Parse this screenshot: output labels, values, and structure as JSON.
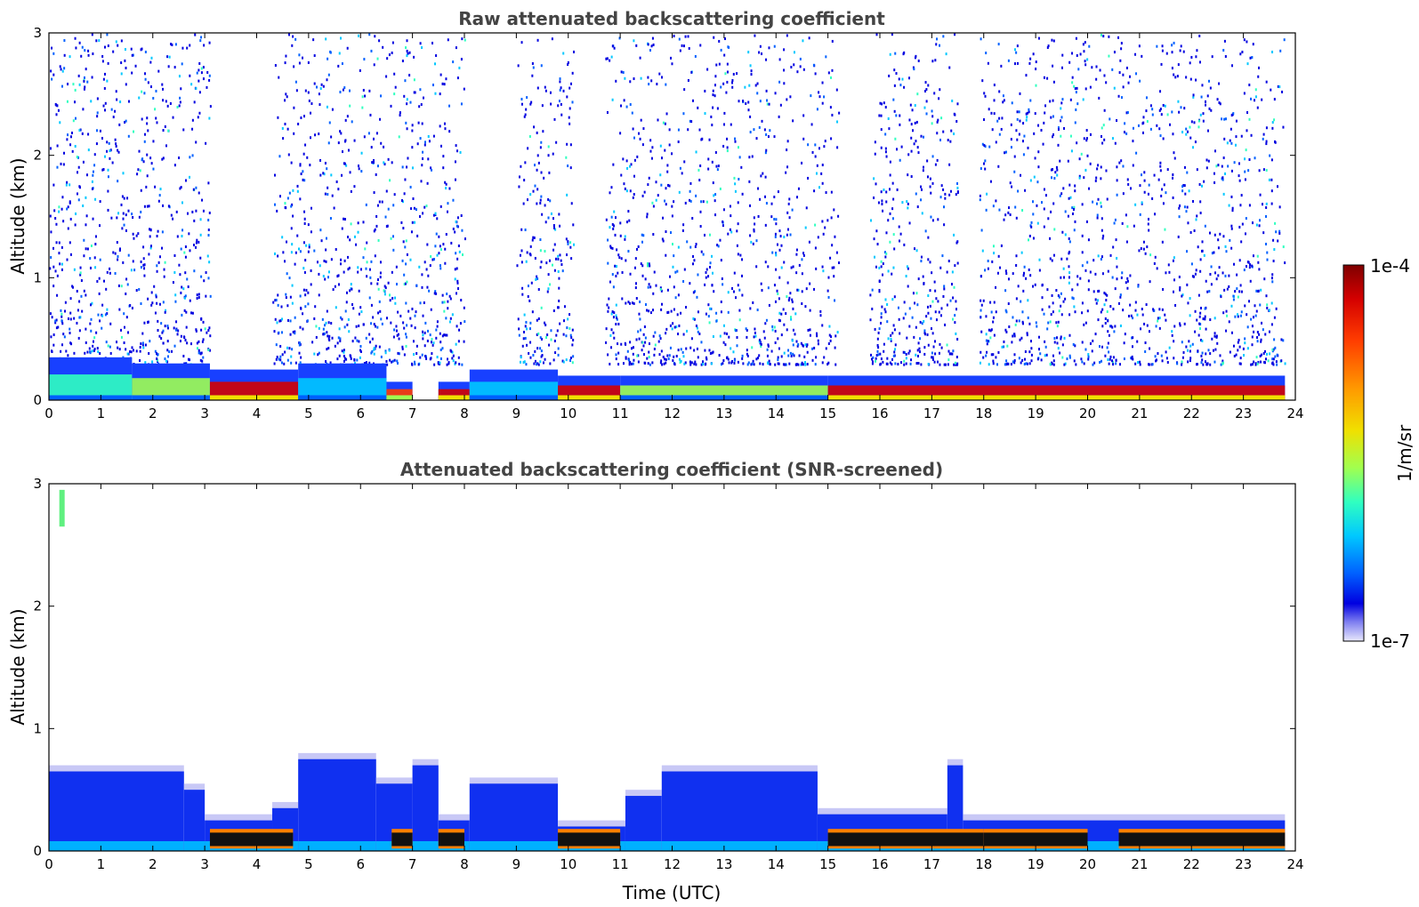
{
  "chart_data": [
    {
      "type": "heatmap",
      "title": "Raw attenuated backscattering coefficient",
      "xlabel": "",
      "ylabel": "Altitude (km)",
      "xlim": [
        0,
        24
      ],
      "ylim": [
        0,
        3
      ],
      "xticks": [
        "0",
        "1",
        "2",
        "3",
        "4",
        "5",
        "6",
        "7",
        "8",
        "9",
        "10",
        "11",
        "12",
        "13",
        "14",
        "15",
        "16",
        "17",
        "18",
        "19",
        "20",
        "21",
        "22",
        "23",
        "24"
      ],
      "yticks": [
        "0",
        "1",
        "2",
        "3"
      ],
      "noise_top_km": 3.0,
      "no_data_gaps": [
        [
          3.1,
          4.3
        ],
        [
          8.0,
          9.0
        ],
        [
          10.1,
          10.7
        ],
        [
          15.2,
          15.8
        ],
        [
          17.5,
          17.9
        ]
      ],
      "boundary_layer": [
        {
          "t": [
            0.0,
            1.6
          ],
          "top_km": 0.35,
          "level": 0.45
        },
        {
          "t": [
            1.6,
            3.1
          ],
          "top_km": 0.3,
          "level": 0.55
        },
        {
          "t": [
            3.1,
            4.8
          ],
          "top_km": 0.25,
          "level": 0.95
        },
        {
          "t": [
            4.8,
            6.5
          ],
          "top_km": 0.3,
          "level": 0.35
        },
        {
          "t": [
            6.5,
            7.0
          ],
          "top_km": 0.15,
          "level": 0.85
        },
        {
          "t": [
            7.5,
            8.1
          ],
          "top_km": 0.15,
          "level": 0.9
        },
        {
          "t": [
            8.1,
            9.8
          ],
          "top_km": 0.25,
          "level": 0.4
        },
        {
          "t": [
            9.8,
            11.0
          ],
          "top_km": 0.2,
          "level": 0.95
        },
        {
          "t": [
            11.0,
            15.0
          ],
          "top_km": 0.2,
          "level": 0.5
        },
        {
          "t": [
            15.0,
            23.8
          ],
          "top_km": 0.2,
          "level": 0.92
        }
      ]
    },
    {
      "type": "heatmap",
      "title": "Attenuated backscattering coefficient (SNR-screened)",
      "xlabel": "Time (UTC)",
      "ylabel": "Altitude (km)",
      "xlim": [
        0,
        24
      ],
      "ylim": [
        0,
        3
      ],
      "xticks": [
        "0",
        "1",
        "2",
        "3",
        "4",
        "5",
        "6",
        "7",
        "8",
        "9",
        "10",
        "11",
        "12",
        "13",
        "14",
        "15",
        "16",
        "17",
        "18",
        "19",
        "20",
        "21",
        "22",
        "23",
        "24"
      ],
      "yticks": [
        "0",
        "1",
        "2",
        "3"
      ],
      "aerosol_layer": [
        {
          "t": [
            0.0,
            2.6
          ],
          "top_km": 0.65
        },
        {
          "t": [
            2.6,
            3.0
          ],
          "top_km": 0.5
        },
        {
          "t": [
            3.0,
            4.3
          ],
          "top_km": 0.25
        },
        {
          "t": [
            4.3,
            4.8
          ],
          "top_km": 0.35
        },
        {
          "t": [
            4.8,
            6.3
          ],
          "top_km": 0.75
        },
        {
          "t": [
            6.3,
            7.0
          ],
          "top_km": 0.55
        },
        {
          "t": [
            7.0,
            7.5
          ],
          "top_km": 0.7
        },
        {
          "t": [
            7.5,
            8.1
          ],
          "top_km": 0.25
        },
        {
          "t": [
            8.1,
            9.8
          ],
          "top_km": 0.55
        },
        {
          "t": [
            9.8,
            11.1
          ],
          "top_km": 0.2
        },
        {
          "t": [
            11.1,
            11.8
          ],
          "top_km": 0.45
        },
        {
          "t": [
            11.8,
            14.8
          ],
          "top_km": 0.65
        },
        {
          "t": [
            14.8,
            17.3
          ],
          "top_km": 0.3
        },
        {
          "t": [
            17.3,
            17.6
          ],
          "top_km": 0.7
        },
        {
          "t": [
            17.6,
            23.8
          ],
          "top_km": 0.25
        }
      ],
      "saturated_segments": [
        [
          3.1,
          4.7
        ],
        [
          6.6,
          7.0
        ],
        [
          7.5,
          8.0
        ],
        [
          9.8,
          11.0
        ],
        [
          15.0,
          18.0
        ],
        [
          18.0,
          20.0
        ],
        [
          20.6,
          23.8
        ]
      ]
    }
  ],
  "colorbar": {
    "label": "1/m/sr",
    "max_label": "1e-4",
    "min_label": "1e-7",
    "colormap": [
      "#7f0000",
      "#d40000",
      "#ff3c00",
      "#ff9a00",
      "#f0e000",
      "#a0ff50",
      "#30ffc0",
      "#00c8ff",
      "#0060ff",
      "#0000e0",
      "#b8b8f8",
      "#e8e8fc"
    ]
  }
}
